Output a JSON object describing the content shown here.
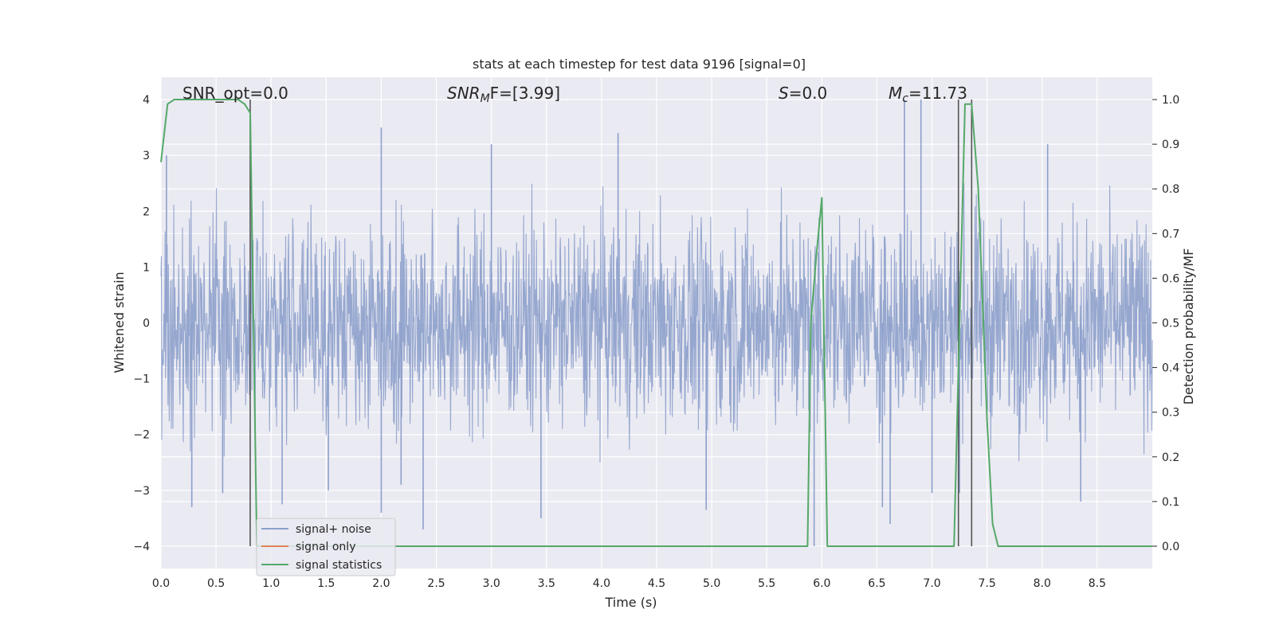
{
  "chart_data": {
    "type": "line",
    "title": "stats at each timestep for test data 9196 [signal=0]",
    "xlabel": "Time (s)",
    "ylabel_left": "Whitened strain",
    "ylabel_right": "Detection probability/MF",
    "xlim": [
      0.0,
      9.0
    ],
    "ylim_left": [
      -4.4,
      4.4
    ],
    "ylim_right": [
      -0.05,
      1.05
    ],
    "xticks": [
      0.0,
      0.5,
      1.0,
      1.5,
      2.0,
      2.5,
      3.0,
      3.5,
      4.0,
      4.5,
      5.0,
      5.5,
      6.0,
      6.5,
      7.0,
      7.5,
      8.0,
      8.5
    ],
    "xtick_labels": [
      "0.0",
      "0.5",
      "1.0",
      "1.5",
      "2.0",
      "2.5",
      "3.0",
      "3.5",
      "4.0",
      "4.5",
      "5.0",
      "5.5",
      "6.0",
      "6.5",
      "7.0",
      "7.5",
      "8.0",
      "8.5"
    ],
    "yticks_left": [
      -4,
      -3,
      -2,
      -1,
      0,
      1,
      2,
      3,
      4
    ],
    "ytick_labels_left": [
      "−4",
      "−3",
      "−2",
      "−1",
      "0",
      "1",
      "2",
      "3",
      "4"
    ],
    "yticks_right": [
      0.0,
      0.1,
      0.2,
      0.3,
      0.4,
      0.5,
      0.6,
      0.7,
      0.8,
      0.9,
      1.0
    ],
    "ytick_labels_right": [
      "0.0",
      "0.1",
      "0.2",
      "0.3",
      "0.4",
      "0.5",
      "0.6",
      "0.7",
      "0.8",
      "0.9",
      "1.0"
    ],
    "grid": true,
    "legend_position": "lower-left",
    "legend": [
      {
        "label": "signal+ noise",
        "color": "#8da0cb"
      },
      {
        "label": "signal only",
        "color": "#dd8452"
      },
      {
        "label": "signal statistics",
        "color": "#55a868"
      }
    ],
    "annotations": {
      "snr_opt": "SNR_opt=0.0",
      "snr_mf_var": "SNR",
      "snr_mf_sub": "M",
      "snr_mf_rest": "F=[3.99]",
      "s_var": "S",
      "s_rest": "=0.0",
      "mc_var": "M",
      "mc_sub": "c",
      "mc_rest": "=11.73"
    },
    "vlines": [
      0.81,
      7.24,
      7.36
    ],
    "series": [
      {
        "name": "signal statistics",
        "axis": "right",
        "color": "#55a868",
        "x": [
          0.0,
          0.06,
          0.12,
          0.2,
          0.3,
          0.4,
          0.5,
          0.6,
          0.7,
          0.76,
          0.81,
          0.84,
          0.87,
          0.9,
          1.0,
          2.0,
          3.0,
          4.0,
          5.0,
          5.5,
          5.87,
          5.9,
          5.95,
          6.0,
          6.05,
          6.1,
          6.5,
          7.0,
          7.15,
          7.2,
          7.26,
          7.3,
          7.36,
          7.42,
          7.5,
          7.55,
          7.6,
          7.62,
          8.0,
          8.5,
          9.0
        ],
        "y": [
          0.86,
          0.99,
          1.0,
          1.0,
          1.0,
          1.0,
          1.0,
          1.0,
          1.0,
          0.99,
          0.97,
          0.5,
          0.0,
          0.0,
          0.0,
          0.0,
          0.0,
          0.0,
          0.0,
          0.0,
          0.0,
          0.5,
          0.65,
          0.78,
          0.0,
          0.0,
          0.0,
          0.0,
          0.0,
          0.0,
          0.6,
          0.99,
          0.99,
          0.8,
          0.28,
          0.05,
          0.0,
          0.0,
          0.0,
          0.0,
          0.0
        ]
      }
    ],
    "noise_series": {
      "name": "signal+ noise",
      "axis": "left",
      "color": "#8da0cb",
      "x_range": [
        0.0,
        9.0
      ],
      "typical_amplitude": 1.3,
      "peaks": [
        {
          "x": 0.05,
          "y": 3.0
        },
        {
          "x": 0.28,
          "y": -3.3
        },
        {
          "x": 0.56,
          "y": -3.05
        },
        {
          "x": 1.1,
          "y": -3.25
        },
        {
          "x": 1.52,
          "y": -3.0
        },
        {
          "x": 2.0,
          "y": 3.5
        },
        {
          "x": 2.0,
          "y": -3.4
        },
        {
          "x": 2.18,
          "y": -2.9
        },
        {
          "x": 2.38,
          "y": -3.7
        },
        {
          "x": 3.0,
          "y": 3.2
        },
        {
          "x": 3.45,
          "y": -3.5
        },
        {
          "x": 4.15,
          "y": 3.4
        },
        {
          "x": 4.95,
          "y": -3.35
        },
        {
          "x": 5.93,
          "y": -4.0
        },
        {
          "x": 6.55,
          "y": -3.3
        },
        {
          "x": 6.62,
          "y": -3.6
        },
        {
          "x": 6.75,
          "y": 4.0
        },
        {
          "x": 6.9,
          "y": 4.0
        },
        {
          "x": 7.0,
          "y": -3.05
        },
        {
          "x": 7.25,
          "y": -3.05
        },
        {
          "x": 8.05,
          "y": 3.2
        },
        {
          "x": 8.35,
          "y": -3.2
        }
      ]
    }
  }
}
